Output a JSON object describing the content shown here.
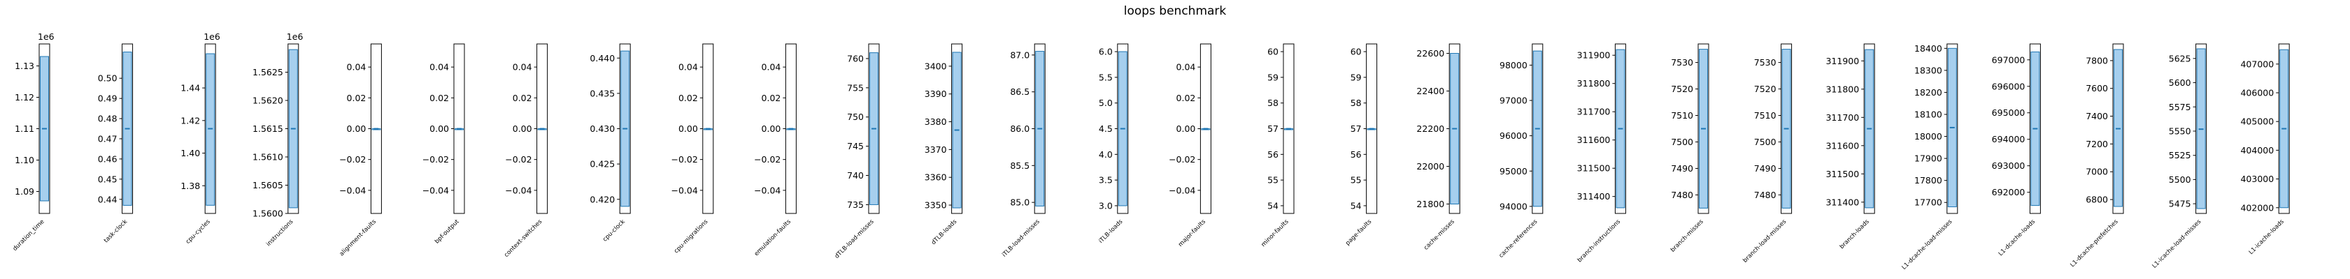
{
  "chart_data": {
    "type": "bar",
    "title": "loops benchmark",
    "subplots": [
      {
        "label": "duration_time",
        "ylim": [
          1.083,
          1.137
        ],
        "offset_label": "1e6",
        "ticks": [
          "1.09",
          "1.10",
          "1.11",
          "1.12",
          "1.13"
        ],
        "tick_values": [
          1.09,
          1.1,
          1.11,
          1.12,
          1.13
        ],
        "bar": [
          1.087,
          1.133
        ],
        "median": 1.11
      },
      {
        "label": "task-clock",
        "ylim": [
          0.433,
          0.517
        ],
        "offset_label": "",
        "ticks": [
          "0.44",
          "0.45",
          "0.46",
          "0.47",
          "0.48",
          "0.49",
          "0.50"
        ],
        "tick_values": [
          0.44,
          0.45,
          0.46,
          0.47,
          0.48,
          0.49,
          0.5
        ],
        "bar": [
          0.437,
          0.513
        ],
        "median": 0.475
      },
      {
        "label": "cpu-cycles",
        "ylim": [
          1.363,
          1.467
        ],
        "offset_label": "1e6",
        "ticks": [
          "1.38",
          "1.40",
          "1.42",
          "1.44"
        ],
        "tick_values": [
          1.38,
          1.4,
          1.42,
          1.44
        ],
        "bar": [
          1.368,
          1.461
        ],
        "median": 1.415
      },
      {
        "label": "instructions",
        "ylim": [
          1.56,
          1.563
        ],
        "offset_label": "1e6",
        "ticks": [
          "1.5600",
          "1.5605",
          "1.5610",
          "1.5615",
          "1.5620",
          "1.5625"
        ],
        "tick_values": [
          1.56,
          1.5605,
          1.561,
          1.5615,
          1.562,
          1.5625
        ],
        "bar": [
          1.5601,
          1.5629
        ],
        "median": 1.5615
      },
      {
        "label": "alignment-faults",
        "ylim": [
          -0.055,
          0.055
        ],
        "offset_label": "",
        "ticks": [
          "−0.04",
          "−0.02",
          "0.00",
          "0.02",
          "0.04"
        ],
        "tick_values": [
          -0.04,
          -0.02,
          0,
          0.02,
          0.04
        ],
        "bar": [
          0,
          0
        ],
        "median": 0
      },
      {
        "label": "bpf-output",
        "ylim": [
          -0.055,
          0.055
        ],
        "offset_label": "",
        "ticks": [
          "−0.04",
          "−0.02",
          "0.00",
          "0.02",
          "0.04"
        ],
        "tick_values": [
          -0.04,
          -0.02,
          0,
          0.02,
          0.04
        ],
        "bar": [
          0,
          0
        ],
        "median": 0
      },
      {
        "label": "context-switches",
        "ylim": [
          -0.055,
          0.055
        ],
        "offset_label": "",
        "ticks": [
          "−0.04",
          "−0.02",
          "0.00",
          "0.02",
          "0.04"
        ],
        "tick_values": [
          -0.04,
          -0.02,
          0,
          0.02,
          0.04
        ],
        "bar": [
          0,
          0
        ],
        "median": 0
      },
      {
        "label": "cpu-clock",
        "ylim": [
          0.418,
          0.442
        ],
        "offset_label": "",
        "ticks": [
          "0.420",
          "0.425",
          "0.430",
          "0.435",
          "0.440"
        ],
        "tick_values": [
          0.42,
          0.425,
          0.43,
          0.435,
          0.44
        ],
        "bar": [
          0.419,
          0.441
        ],
        "median": 0.43
      },
      {
        "label": "cpu-migrations",
        "ylim": [
          -0.055,
          0.055
        ],
        "offset_label": "",
        "ticks": [
          "−0.04",
          "−0.02",
          "0.00",
          "0.02",
          "0.04"
        ],
        "tick_values": [
          -0.04,
          -0.02,
          0,
          0.02,
          0.04
        ],
        "bar": [
          0,
          0
        ],
        "median": 0
      },
      {
        "label": "emulation-faults",
        "ylim": [
          -0.055,
          0.055
        ],
        "offset_label": "",
        "ticks": [
          "−0.04",
          "−0.02",
          "0.00",
          "0.02",
          "0.04"
        ],
        "tick_values": [
          -0.04,
          -0.02,
          0,
          0.02,
          0.04
        ],
        "bar": [
          0,
          0
        ],
        "median": 0
      },
      {
        "label": "dTLB-load-misses",
        "ylim": [
          733.5,
          762.5
        ],
        "offset_label": "",
        "ticks": [
          "735",
          "740",
          "745",
          "750",
          "755",
          "760"
        ],
        "tick_values": [
          735,
          740,
          745,
          750,
          755,
          760
        ],
        "bar": [
          735,
          761
        ],
        "median": 748
      },
      {
        "label": "dTLB-loads",
        "ylim": [
          3347,
          3408
        ],
        "offset_label": "",
        "ticks": [
          "3350",
          "3360",
          "3370",
          "3380",
          "3390",
          "3400"
        ],
        "tick_values": [
          3350,
          3360,
          3370,
          3380,
          3390,
          3400
        ],
        "bar": [
          3349,
          3405
        ],
        "median": 3377
      },
      {
        "label": "iTLB-load-misses",
        "ylim": [
          84.85,
          87.15
        ],
        "offset_label": "",
        "ticks": [
          "85.0",
          "85.5",
          "86.0",
          "86.5",
          "87.0"
        ],
        "tick_values": [
          85.0,
          85.5,
          86.0,
          86.5,
          87.0
        ],
        "bar": [
          84.95,
          87.05
        ],
        "median": 86.0
      },
      {
        "label": "iTLB-loads",
        "ylim": [
          2.85,
          6.15
        ],
        "offset_label": "",
        "ticks": [
          "3.0",
          "3.5",
          "4.0",
          "4.5",
          "5.0",
          "5.5",
          "6.0"
        ],
        "tick_values": [
          3.0,
          3.5,
          4.0,
          4.5,
          5.0,
          5.5,
          6.0
        ],
        "bar": [
          3.0,
          6.0
        ],
        "median": 4.5
      },
      {
        "label": "major-faults",
        "ylim": [
          -0.055,
          0.055
        ],
        "offset_label": "",
        "ticks": [
          "−0.04",
          "−0.02",
          "0.00",
          "0.02",
          "0.04"
        ],
        "tick_values": [
          -0.04,
          -0.02,
          0,
          0.02,
          0.04
        ],
        "bar": [
          0,
          0
        ],
        "median": 0
      },
      {
        "label": "minor-faults",
        "ylim": [
          53.7,
          60.3
        ],
        "offset_label": "",
        "ticks": [
          "54",
          "55",
          "56",
          "57",
          "58",
          "59",
          "60"
        ],
        "tick_values": [
          54,
          55,
          56,
          57,
          58,
          59,
          60
        ],
        "bar": [
          57,
          57
        ],
        "median": 57
      },
      {
        "label": "page-faults",
        "ylim": [
          53.7,
          60.3
        ],
        "offset_label": "",
        "ticks": [
          "54",
          "55",
          "56",
          "57",
          "58",
          "59",
          "60"
        ],
        "tick_values": [
          54,
          55,
          56,
          57,
          58,
          59,
          60
        ],
        "bar": [
          57,
          57
        ],
        "median": 57
      },
      {
        "label": "cache-misses",
        "ylim": [
          21750,
          22650
        ],
        "offset_label": "",
        "ticks": [
          "21800",
          "22000",
          "22200",
          "22400",
          "22600"
        ],
        "tick_values": [
          21800,
          22000,
          22200,
          22400,
          22600
        ],
        "bar": [
          21800,
          22600
        ],
        "median": 22200
      },
      {
        "label": "cache-references",
        "ylim": [
          93800,
          98600
        ],
        "offset_label": "",
        "ticks": [
          "94000",
          "95000",
          "96000",
          "97000",
          "98000"
        ],
        "tick_values": [
          94000,
          95000,
          96000,
          97000,
          98000
        ],
        "bar": [
          94000,
          98400
        ],
        "median": 96200
      },
      {
        "label": "branch-instructions",
        "ylim": [
          311340,
          311940
        ],
        "offset_label": "",
        "ticks": [
          "311400",
          "311500",
          "311600",
          "311700",
          "311800",
          "311900"
        ],
        "tick_values": [
          311400,
          311500,
          311600,
          311700,
          311800,
          311900
        ],
        "bar": [
          311360,
          311920
        ],
        "median": 311640
      },
      {
        "label": "branch-misses",
        "ylim": [
          7473,
          7537
        ],
        "offset_label": "",
        "ticks": [
          "7480",
          "7490",
          "7500",
          "7510",
          "7520",
          "7530"
        ],
        "tick_values": [
          7480,
          7490,
          7500,
          7510,
          7520,
          7530
        ],
        "bar": [
          7475,
          7535
        ],
        "median": 7505
      },
      {
        "label": "branch-load-misses",
        "ylim": [
          7473,
          7537
        ],
        "offset_label": "",
        "ticks": [
          "7480",
          "7490",
          "7500",
          "7510",
          "7520",
          "7530"
        ],
        "tick_values": [
          7480,
          7490,
          7500,
          7510,
          7520,
          7530
        ],
        "bar": [
          7475,
          7535
        ],
        "median": 7505
      },
      {
        "label": "branch-loads",
        "ylim": [
          311360,
          311960
        ],
        "offset_label": "",
        "ticks": [
          "311400",
          "311500",
          "311600",
          "311700",
          "311800",
          "311900"
        ],
        "tick_values": [
          311400,
          311500,
          311600,
          311700,
          311800,
          311900
        ],
        "bar": [
          311380,
          311940
        ],
        "median": 311660
      },
      {
        "label": "L1-dcache-load-misses",
        "ylim": [
          17650,
          18420
        ],
        "offset_label": "",
        "ticks": [
          "17700",
          "17800",
          "17900",
          "18000",
          "18100",
          "18200",
          "18300",
          "18400"
        ],
        "tick_values": [
          17700,
          17800,
          17900,
          18000,
          18100,
          18200,
          18300,
          18400
        ],
        "bar": [
          17680,
          18400
        ],
        "median": 18040
      },
      {
        "label": "L1-dcache-loads",
        "ylim": [
          691200,
          697600
        ],
        "offset_label": "",
        "ticks": [
          "692000",
          "693000",
          "694000",
          "695000",
          "696000",
          "697000"
        ],
        "tick_values": [
          692000,
          693000,
          694000,
          695000,
          696000,
          697000
        ],
        "bar": [
          691500,
          697300
        ],
        "median": 694400
      },
      {
        "label": "L1-dcache-prefetches",
        "ylim": [
          6700,
          7920
        ],
        "offset_label": "",
        "ticks": [
          "6800",
          "7000",
          "7200",
          "7400",
          "7600",
          "7800"
        ],
        "tick_values": [
          6800,
          7000,
          7200,
          7400,
          7600,
          7800
        ],
        "bar": [
          6750,
          7880
        ],
        "median": 7310
      },
      {
        "label": "L1-icache-load-misses",
        "ylim": [
          5465,
          5640
        ],
        "offset_label": "",
        "ticks": [
          "5475",
          "5500",
          "5525",
          "5550",
          "5575",
          "5600",
          "5625"
        ],
        "tick_values": [
          5475,
          5500,
          5525,
          5550,
          5575,
          5600,
          5625
        ],
        "bar": [
          5470,
          5635
        ],
        "median": 5552
      },
      {
        "label": "L1-icache-loads",
        "ylim": [
          401800,
          407700
        ],
        "offset_label": "",
        "ticks": [
          "402000",
          "403000",
          "404000",
          "405000",
          "406000",
          "407000"
        ],
        "tick_values": [
          402000,
          403000,
          404000,
          405000,
          406000,
          407000
        ],
        "bar": [
          402000,
          407500
        ],
        "median": 404750
      }
    ]
  },
  "colors": {
    "bar_fill": "#a6cfee",
    "bar_edge": "#1f77b4",
    "axis": "#000000",
    "median": "#1f77b4"
  }
}
